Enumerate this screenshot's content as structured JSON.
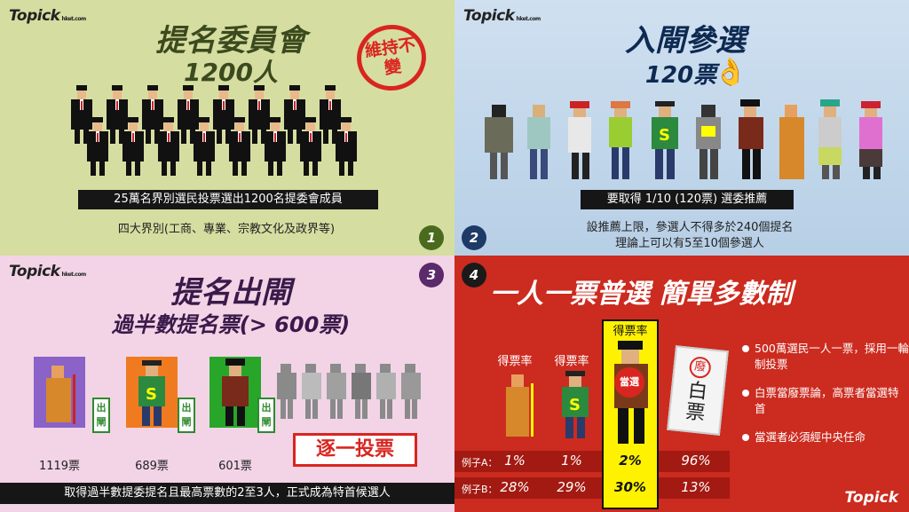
{
  "logo": {
    "text": "Topick",
    "sub": "hket.com"
  },
  "panel1": {
    "title": "提名委員會",
    "subtitle": "1200人",
    "stamp": "維持不變",
    "caption": "25萬名界別選民投票選出1200名提委會成員",
    "note": "四大界別(工商、專業、宗教文化及政界等)",
    "number": "1"
  },
  "panel2": {
    "title": "入閘參選",
    "subtitle": "120票",
    "caption": "要取得 1/10 (120票) 選委推薦",
    "note_line1": "設推薦上限，參選人不得多於240個提名",
    "note_line2": "理論上可以有5至10個參選人",
    "number": "2"
  },
  "panel3": {
    "title": "提名出閘",
    "subtitle": "過半數提名票(> 600票)",
    "number": "3",
    "candidates": [
      {
        "votes": "1119票",
        "tag": "出閘"
      },
      {
        "votes": "689票",
        "tag": "出閘"
      },
      {
        "votes": "601票",
        "tag": "出閘"
      }
    ],
    "one_by_one": "逐一投票",
    "caption": "取得過半數提委提名且最高票數的2至3人，正式成為特首候選人"
  },
  "panel4": {
    "number": "4",
    "title": "一人一票普選  簡單多數制",
    "rate_label": "得票率",
    "elected_badge": "當選",
    "blank_seal": "廢",
    "blank_text": "白票",
    "examples": [
      {
        "label": "例子A：",
        "values": [
          "1%",
          "1%",
          "2%",
          "96%"
        ]
      },
      {
        "label": "例子B：",
        "values": [
          "28%",
          "29%",
          "30%",
          "13%"
        ]
      }
    ],
    "bullets": [
      "500萬選民一人一票，採用一輪制投票",
      "白票當廢票論，高票者當選特首",
      "當選者必須經中央任命"
    ]
  },
  "colors": {
    "panel1_bg": "#d6dda0",
    "panel2_bg": "#c3d8ec",
    "panel3_bg": "#f2d4e6",
    "panel4_bg": "#cc2b1f",
    "stamp_red": "#d9251f",
    "highlight_yellow": "#fff200"
  }
}
